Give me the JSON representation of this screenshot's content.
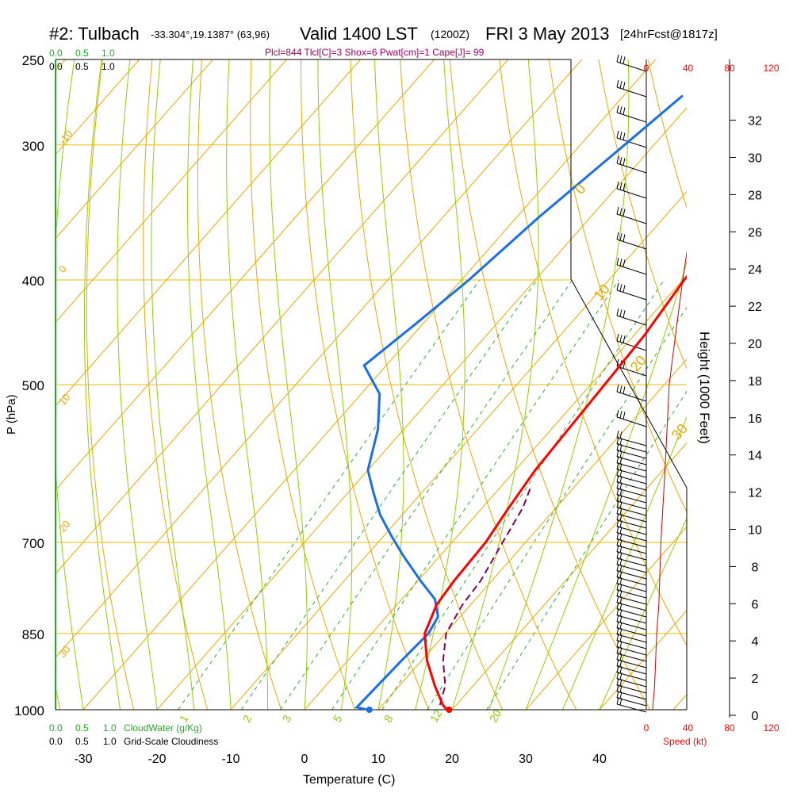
{
  "header": {
    "station": "#2: Tulbach",
    "coords": "-33.304°,19.1387° (63,96)",
    "valid": "Valid 1400 LST",
    "utc": "(1200Z)",
    "date": "FRI 3 May 2013",
    "forecast": "[24hrFcst@1817z]"
  },
  "indices": "Plcl=844 Tlcl[C]=3 Shox=6 Pwat[cm]=1 Cape[J]= 99",
  "scales": {
    "cloudwater_ticks": [
      "0.0",
      "0.5",
      "1.0"
    ],
    "cloudiness_ticks": [
      "0.0",
      "0.5",
      "1.0"
    ],
    "cloudwater_label": "CloudWater (g/Kg)",
    "cloudiness_label": "Grid-Scale Cloudiness",
    "speed_ticks": [
      "0",
      "40",
      "80",
      "120"
    ],
    "speed_label": "Speed (kt)"
  },
  "colors": {
    "temperature": "#ff0000",
    "dewpoint": "#1a6ee6",
    "parcel": "#800060",
    "isobar": "#f5b800",
    "dry_adiabat": "#e8a800",
    "moist_adiabat": "#90d000",
    "mixing_ratio": "#33aa33",
    "green_text": "#22aa22",
    "indices_text": "#990066"
  },
  "chart_data": {
    "type": "line",
    "diagram": "skew-T log-P",
    "xlabel": "Temperature (C)",
    "ylabel": "P (hPa)",
    "y2label": "Height (1000 Feet)",
    "x_ticks": [
      -30,
      -20,
      -10,
      0,
      10,
      20,
      30,
      40
    ],
    "pressure_ticks": [
      250,
      300,
      400,
      500,
      700,
      850,
      1000
    ],
    "height_ticks": [
      0,
      2,
      4,
      6,
      8,
      10,
      12,
      14,
      16,
      18,
      20,
      22,
      24,
      26,
      28,
      30,
      32
    ],
    "ylim_hpa": [
      1000,
      250
    ],
    "dry_adiabat_labels": [
      "-10",
      "0",
      "10",
      "20",
      "30",
      "0",
      "10",
      "20",
      "30"
    ],
    "mixing_ratio_labels": [
      "1",
      "2",
      "3",
      "5",
      "8",
      "12",
      "20"
    ],
    "series": [
      {
        "key": "temperature",
        "points": [
          [
            1000,
            19.3
          ],
          [
            990,
            18.2
          ],
          [
            950,
            14.8
          ],
          [
            900,
            10.7
          ],
          [
            850,
            7.2
          ],
          [
            800,
            5.4
          ],
          [
            760,
            4.9
          ],
          [
            700,
            4.6
          ],
          [
            650,
            3.6
          ],
          [
            600,
            2.7
          ],
          [
            550,
            2.3
          ],
          [
            500,
            1.9
          ],
          [
            450,
            1.4
          ],
          [
            400,
            0.2
          ],
          [
            350,
            -0.5
          ],
          [
            300,
            -1.2
          ],
          [
            270,
            -1.5
          ]
        ]
      },
      {
        "key": "dewpoint",
        "points": [
          [
            1000,
            8.5
          ],
          [
            995,
            6.8
          ],
          [
            900,
            7.3
          ],
          [
            850,
            7.7
          ],
          [
            820,
            7.0
          ],
          [
            790,
            4.5
          ],
          [
            760,
            0.4
          ],
          [
            720,
            -5.0
          ],
          [
            690,
            -9.0
          ],
          [
            660,
            -13.0
          ],
          [
            630,
            -16.5
          ],
          [
            600,
            -20.0
          ],
          [
            550,
            -23.5
          ],
          [
            510,
            -27.5
          ],
          [
            480,
            -33.0
          ],
          [
            440,
            -31.0
          ],
          [
            400,
            -29.0
          ],
          [
            350,
            -27.0
          ],
          [
            300,
            -24.0
          ],
          [
            270,
            -22.0
          ]
        ]
      },
      {
        "key": "parcel",
        "points": [
          [
            990,
            17.8
          ],
          [
            950,
            16.2
          ],
          [
            900,
            12.9
          ],
          [
            850,
            10.1
          ],
          [
            800,
            8.9
          ],
          [
            760,
            8.5
          ],
          [
            700,
            6.9
          ],
          [
            650,
            5.5
          ],
          [
            620,
            4.0
          ]
        ]
      },
      {
        "key": "wind_speed",
        "points": [
          [
            1000,
            6
          ],
          [
            950,
            8
          ],
          [
            850,
            10
          ],
          [
            800,
            12
          ],
          [
            700,
            14
          ],
          [
            600,
            18
          ],
          [
            500,
            22
          ],
          [
            450,
            28
          ],
          [
            400,
            35
          ],
          [
            350,
            44
          ],
          [
            300,
            58
          ],
          [
            270,
            64
          ]
        ]
      }
    ],
    "surface_points": {
      "temperature": 19.6,
      "dewpoint": 8.8
    }
  }
}
